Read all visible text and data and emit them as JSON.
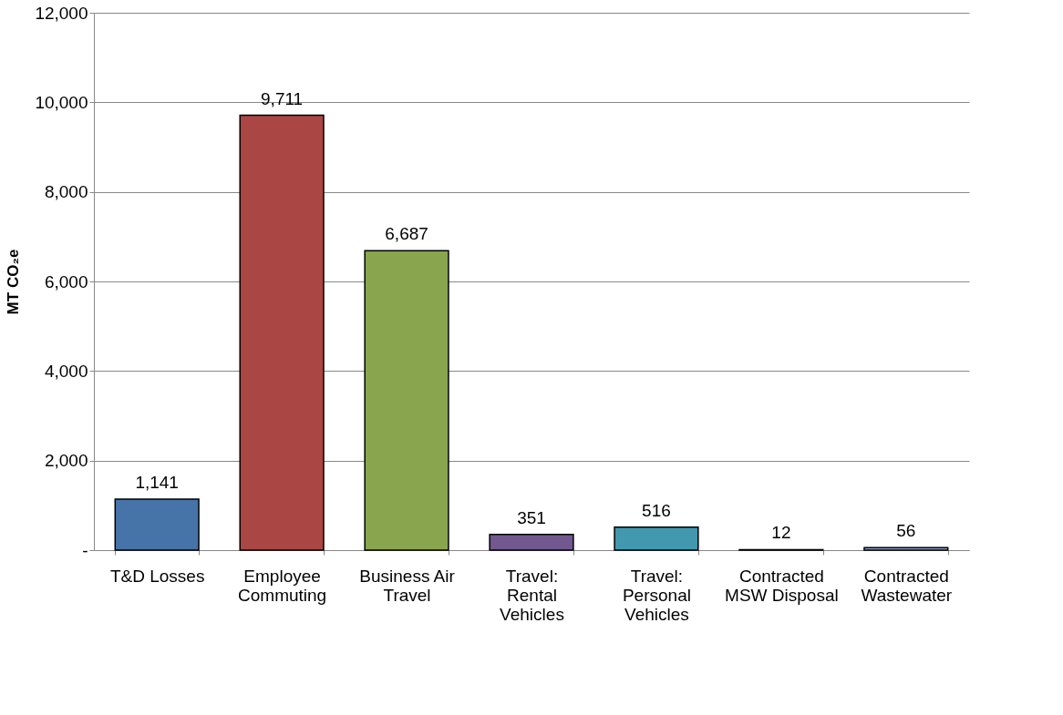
{
  "chart_data": {
    "type": "bar",
    "ylabel": "MT CO₂e",
    "categories": [
      "T&D Losses",
      "Employee Commuting",
      "Business Air Travel",
      "Travel: Rental Vehicles",
      "Travel: Personal Vehicles",
      "Contracted MSW Disposal",
      "Contracted Wastewater"
    ],
    "values": [
      1141,
      9711,
      6687,
      351,
      516,
      12,
      56
    ],
    "colors": [
      "#4673a8",
      "#aa4643",
      "#89a54e",
      "#71588f",
      "#4198af",
      "#db843d",
      "#93a9cf"
    ],
    "ylim": [
      0,
      12000
    ],
    "yticks": [
      {
        "value": 0,
        "label": "-"
      },
      {
        "value": 2000,
        "label": "2,000"
      },
      {
        "value": 4000,
        "label": "4,000"
      },
      {
        "value": 6000,
        "label": "6,000"
      },
      {
        "value": 8000,
        "label": "8,000"
      },
      {
        "value": 10000,
        "label": "10,000"
      },
      {
        "value": 12000,
        "label": "12,000"
      }
    ],
    "value_labels": [
      "1,141",
      "9,711",
      "6,687",
      "351",
      "516",
      "12",
      "56"
    ],
    "grid": "y"
  }
}
